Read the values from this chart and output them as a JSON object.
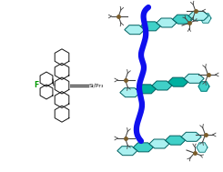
{
  "title": "",
  "background_color": "#ffffff",
  "figsize": [
    2.45,
    1.89
  ],
  "dpi": 100,
  "left_structure": {
    "label_F": "F",
    "label_Si": "Si∕Pr₃",
    "bond_color": "#111111",
    "F_color": "#009900",
    "text_color": "#111111"
  },
  "right_structure": {
    "core_light": "#aaf0f0",
    "core_mid": "#40d0c8",
    "core_dark": "#00b0a0",
    "stack_color": "#1010ee",
    "edge_color": "#006060",
    "sub_color": "#7a5c2a",
    "sub_edge": "#444444"
  }
}
